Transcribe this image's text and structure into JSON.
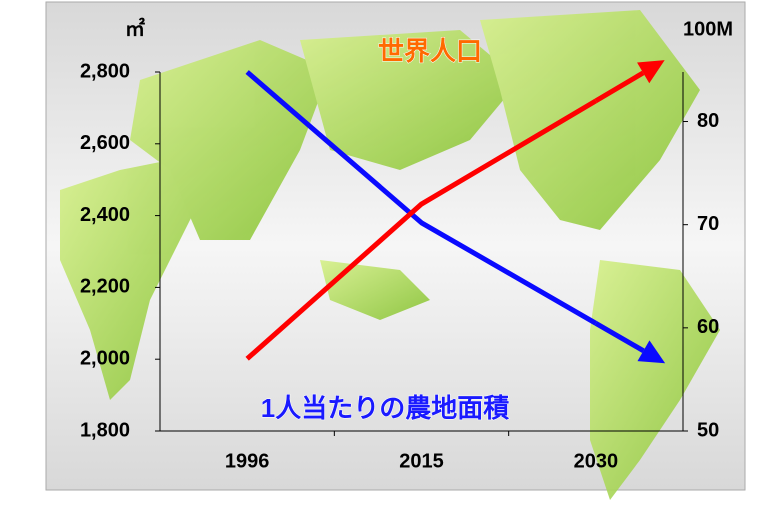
{
  "chart_data": {
    "type": "line",
    "categories": [
      "1996",
      "2015",
      "2030"
    ],
    "y_unit": "㎡",
    "y2_unit": "100M",
    "series": [
      {
        "name": "1人当たりの農地面積",
        "color": "#0a0aff",
        "label_color": "#1a1aff",
        "values": [
          2800,
          2380,
          2100
        ]
      },
      {
        "name": "世界人口",
        "color": "#ff0000",
        "label_color": "#ff6a00",
        "axis": "y2",
        "values": [
          57,
          72,
          82
        ]
      }
    ],
    "ylim": [
      1800,
      2800
    ],
    "yticks": [
      {
        "value": 1800,
        "label": "1,800"
      },
      {
        "value": 2000,
        "label": "2,000"
      },
      {
        "value": 2200,
        "label": "2,200"
      },
      {
        "value": 2400,
        "label": "2,400"
      },
      {
        "value": 2600,
        "label": "2,600"
      },
      {
        "value": 2800,
        "label": "2,800"
      }
    ],
    "y2lim": [
      50,
      84.8
    ],
    "y2ticks": [
      50,
      60,
      70,
      80
    ]
  }
}
